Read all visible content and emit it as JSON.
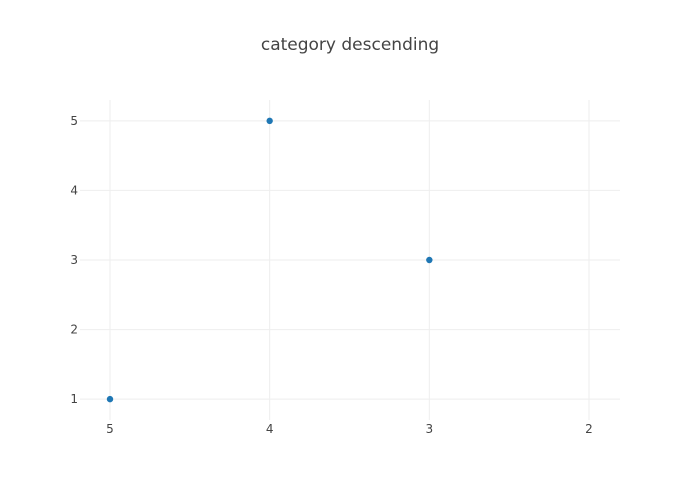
{
  "chart_data": {
    "type": "scatter",
    "title": "category descending",
    "xlabel": "",
    "ylabel": "",
    "x_axis": {
      "type": "category",
      "categories": [
        "5",
        "4",
        "3",
        "2"
      ]
    },
    "y_axis": {
      "type": "linear",
      "ticks": [
        1,
        2,
        3,
        4,
        5
      ],
      "range": [
        0.7,
        5.3
      ]
    },
    "grid": true,
    "legend": "none",
    "series": [
      {
        "color": "#1f77b4",
        "points": [
          {
            "x": "5",
            "y": 1
          },
          {
            "x": "4",
            "y": 5
          },
          {
            "x": "3",
            "y": 3
          }
        ]
      }
    ]
  }
}
